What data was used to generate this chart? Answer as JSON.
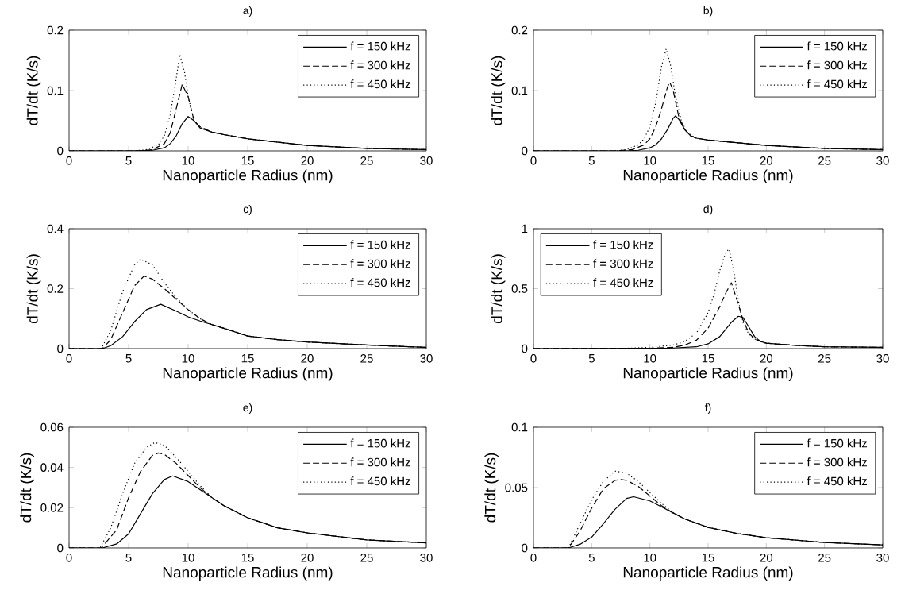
{
  "chart_data": [
    {
      "type": "line",
      "title": "a)",
      "xlabel": "Nanoparticle Radius (nm)",
      "ylabel": "dT/dt (K/s)",
      "xlim": [
        0,
        30
      ],
      "xticks": [
        0,
        5,
        10,
        15,
        20,
        25,
        30
      ],
      "ylim": [
        0,
        0.2
      ],
      "yticks": [
        0,
        0.1,
        0.2
      ],
      "legend": "top right",
      "series": [
        {
          "name": "f = 150 kHz",
          "color": "#000000",
          "line_style": "solid",
          "x": [
            0,
            5,
            7,
            8,
            8.5,
            9,
            9.5,
            10,
            10.5,
            11,
            12,
            13,
            15,
            20,
            25,
            30
          ],
          "values": [
            0,
            0,
            0.001,
            0.005,
            0.012,
            0.025,
            0.045,
            0.057,
            0.05,
            0.038,
            0.031,
            0.027,
            0.02,
            0.009,
            0.004,
            0.002
          ]
        },
        {
          "name": "f = 300 kHz",
          "color": "#000000",
          "line_style": "dashed",
          "x": [
            0,
            6,
            7,
            8,
            8.5,
            9,
            9.5,
            10,
            10.5,
            11,
            12,
            13,
            15,
            20,
            25,
            30
          ],
          "values": [
            0,
            0,
            0.002,
            0.012,
            0.03,
            0.07,
            0.11,
            0.09,
            0.05,
            0.04,
            0.031,
            0.027,
            0.02,
            0.009,
            0.004,
            0.002
          ]
        },
        {
          "name": "f = 450 kHz",
          "color": "#000000",
          "line_style": "dotted",
          "x": [
            0,
            5.5,
            6.5,
            7.5,
            8,
            8.5,
            9,
            9.3,
            9.7,
            10,
            10.5,
            11,
            12,
            13,
            15,
            20,
            25,
            30
          ],
          "values": [
            0,
            0,
            0.002,
            0.01,
            0.025,
            0.06,
            0.12,
            0.16,
            0.13,
            0.09,
            0.05,
            0.04,
            0.031,
            0.027,
            0.02,
            0.009,
            0.004,
            0.002
          ]
        }
      ]
    },
    {
      "type": "line",
      "title": "b)",
      "xlabel": "Nanoparticle Radius (nm)",
      "ylabel": "dT/dt (K/s)",
      "xlim": [
        0,
        30
      ],
      "xticks": [
        0,
        5,
        10,
        15,
        20,
        25,
        30
      ],
      "ylim": [
        0,
        0.2
      ],
      "yticks": [
        0,
        0.1,
        0.2
      ],
      "legend": "top right",
      "series": [
        {
          "name": "f = 150 kHz",
          "color": "#000000",
          "line_style": "solid",
          "x": [
            0,
            8,
            9,
            10,
            10.5,
            11,
            11.5,
            12,
            12.2,
            12.5,
            13,
            13.5,
            14,
            15,
            20,
            25,
            30
          ],
          "values": [
            0,
            0,
            0.001,
            0.005,
            0.01,
            0.02,
            0.035,
            0.054,
            0.058,
            0.052,
            0.035,
            0.025,
            0.021,
            0.018,
            0.009,
            0.004,
            0.002
          ]
        },
        {
          "name": "f = 300 kHz",
          "color": "#000000",
          "line_style": "dashed",
          "x": [
            0,
            7,
            8.5,
            9.5,
            10,
            10.5,
            11,
            11.5,
            11.7,
            12,
            12.5,
            13,
            13.5,
            14,
            15,
            20,
            25,
            30
          ],
          "values": [
            0,
            0,
            0.002,
            0.01,
            0.02,
            0.04,
            0.07,
            0.105,
            0.114,
            0.1,
            0.055,
            0.035,
            0.025,
            0.021,
            0.018,
            0.009,
            0.004,
            0.002
          ]
        },
        {
          "name": "f = 450 kHz",
          "color": "#000000",
          "line_style": "dotted",
          "x": [
            0,
            7,
            8,
            9,
            9.5,
            10,
            10.5,
            11,
            11.4,
            11.8,
            12.2,
            12.7,
            13.2,
            14,
            15,
            20,
            25,
            30
          ],
          "values": [
            0,
            0,
            0.002,
            0.01,
            0.02,
            0.04,
            0.08,
            0.14,
            0.169,
            0.14,
            0.09,
            0.05,
            0.03,
            0.021,
            0.018,
            0.009,
            0.004,
            0.002
          ]
        }
      ]
    },
    {
      "type": "line",
      "title": "c)",
      "xlabel": "Nanoparticle Radius (nm)",
      "ylabel": "dT/dt (K/s)",
      "xlim": [
        0,
        30
      ],
      "xticks": [
        0,
        5,
        10,
        15,
        20,
        25,
        30
      ],
      "ylim": [
        0,
        0.4
      ],
      "yticks": [
        0,
        0.2,
        0.4
      ],
      "legend": "top right",
      "series": [
        {
          "name": "f = 150 kHz",
          "color": "#000000",
          "line_style": "solid",
          "x": [
            0,
            2.8,
            3.5,
            4.5,
            5.5,
            6.5,
            7.7,
            9,
            10,
            11,
            12,
            13,
            15,
            17.5,
            20,
            25,
            30
          ],
          "values": [
            0,
            0,
            0.01,
            0.04,
            0.09,
            0.13,
            0.148,
            0.125,
            0.106,
            0.092,
            0.08,
            0.068,
            0.042,
            0.03,
            0.022,
            0.012,
            0.004
          ]
        },
        {
          "name": "f = 300 kHz",
          "color": "#000000",
          "line_style": "dashed",
          "x": [
            0,
            2.8,
            3.5,
            4.5,
            5.5,
            6.3,
            7,
            8,
            9,
            10,
            11,
            12,
            13,
            15,
            17.5,
            20,
            25,
            30
          ],
          "values": [
            0,
            0,
            0.03,
            0.12,
            0.21,
            0.242,
            0.232,
            0.2,
            0.165,
            0.13,
            0.1,
            0.08,
            0.068,
            0.042,
            0.03,
            0.022,
            0.012,
            0.004
          ]
        },
        {
          "name": "f = 450 kHz",
          "color": "#000000",
          "line_style": "dotted",
          "x": [
            0,
            2.7,
            3.5,
            4.5,
            5.5,
            6,
            7,
            8,
            9,
            10,
            11,
            12,
            13,
            15,
            17.5,
            20,
            25,
            30
          ],
          "values": [
            0,
            0,
            0.06,
            0.19,
            0.28,
            0.298,
            0.28,
            0.22,
            0.17,
            0.13,
            0.1,
            0.08,
            0.068,
            0.042,
            0.03,
            0.022,
            0.012,
            0.004
          ]
        }
      ]
    },
    {
      "type": "line",
      "title": "d)",
      "xlabel": "Nanoparticle Radius (nm)",
      "ylabel": "dT/dt (K/s)",
      "xlim": [
        0,
        30
      ],
      "xticks": [
        0,
        5,
        10,
        15,
        20,
        25,
        30
      ],
      "ylim": [
        0,
        1
      ],
      "yticks": [
        0,
        0.5,
        1
      ],
      "legend": "top left",
      "series": [
        {
          "name": "f = 150 kHz",
          "color": "#000000",
          "line_style": "solid",
          "x": [
            0,
            10,
            12,
            14,
            15,
            16,
            17,
            17.6,
            18,
            18.5,
            19,
            19.5,
            20,
            22,
            25,
            30
          ],
          "values": [
            0,
            0.002,
            0.005,
            0.015,
            0.04,
            0.1,
            0.22,
            0.27,
            0.26,
            0.18,
            0.1,
            0.06,
            0.045,
            0.03,
            0.015,
            0.01
          ]
        },
        {
          "name": "f = 300 kHz",
          "color": "#000000",
          "line_style": "dashed",
          "x": [
            0,
            10,
            12,
            13,
            14,
            15,
            16,
            16.5,
            17,
            17.5,
            18,
            18.5,
            19,
            19.5,
            20,
            22,
            25,
            30
          ],
          "values": [
            0,
            0.003,
            0.01,
            0.03,
            0.07,
            0.17,
            0.35,
            0.46,
            0.55,
            0.4,
            0.24,
            0.13,
            0.08,
            0.06,
            0.045,
            0.03,
            0.015,
            0.01
          ]
        },
        {
          "name": "f = 450 kHz",
          "color": "#000000",
          "line_style": "dotted",
          "x": [
            0,
            8,
            10,
            12,
            13,
            14,
            15,
            15.5,
            16,
            16.5,
            16.8,
            17.2,
            17.6,
            18,
            18.5,
            19,
            19.5,
            20,
            22,
            25,
            30
          ],
          "values": [
            0,
            0.003,
            0.01,
            0.03,
            0.06,
            0.13,
            0.3,
            0.45,
            0.65,
            0.8,
            0.83,
            0.65,
            0.4,
            0.22,
            0.12,
            0.08,
            0.06,
            0.045,
            0.03,
            0.015,
            0.01
          ]
        }
      ]
    },
    {
      "type": "line",
      "title": "e)",
      "xlabel": "Nanoparticle Radius (nm)",
      "ylabel": "dT/dt (K/s)",
      "xlim": [
        0,
        30
      ],
      "xticks": [
        0,
        5,
        10,
        15,
        20,
        25,
        30
      ],
      "ylim": [
        0,
        0.06
      ],
      "yticks": [
        0,
        0.02,
        0.04,
        0.06
      ],
      "legend": "top right",
      "series": [
        {
          "name": "f = 150 kHz",
          "color": "#000000",
          "line_style": "solid",
          "x": [
            0,
            2.8,
            4,
            5,
            6,
            7,
            8,
            8.7,
            10,
            11,
            12,
            13,
            15,
            17.5,
            20,
            25,
            30
          ],
          "values": [
            0,
            0,
            0.002,
            0.007,
            0.017,
            0.027,
            0.034,
            0.0358,
            0.033,
            0.029,
            0.025,
            0.021,
            0.015,
            0.01,
            0.0075,
            0.004,
            0.0025
          ]
        },
        {
          "name": "f = 300 kHz",
          "color": "#000000",
          "line_style": "dashed",
          "x": [
            0,
            2.7,
            4,
            5,
            6,
            7,
            7.5,
            8,
            9,
            10,
            11,
            12,
            13,
            15,
            17.5,
            20,
            25,
            30
          ],
          "values": [
            0,
            0,
            0.009,
            0.025,
            0.038,
            0.046,
            0.0472,
            0.0465,
            0.042,
            0.036,
            0.03,
            0.025,
            0.021,
            0.015,
            0.01,
            0.0075,
            0.004,
            0.0025
          ]
        },
        {
          "name": "f = 450 kHz",
          "color": "#000000",
          "line_style": "dotted",
          "x": [
            0,
            2.6,
            3.5,
            4.5,
            5.5,
            6.5,
            7.2,
            8,
            9,
            10,
            11,
            12,
            13,
            15,
            17.5,
            20,
            25,
            30
          ],
          "values": [
            0,
            0,
            0.01,
            0.027,
            0.042,
            0.05,
            0.0524,
            0.051,
            0.045,
            0.038,
            0.031,
            0.025,
            0.021,
            0.015,
            0.01,
            0.0075,
            0.004,
            0.0025
          ]
        }
      ]
    },
    {
      "type": "line",
      "title": "f)",
      "xlabel": "Nanoparticle Radius (nm)",
      "ylabel": "dT/dt (K/s)",
      "xlim": [
        0,
        30
      ],
      "xticks": [
        0,
        5,
        10,
        15,
        20,
        25,
        30
      ],
      "ylim": [
        0,
        0.1
      ],
      "yticks": [
        0,
        0.05,
        0.1
      ],
      "legend": "top right",
      "series": [
        {
          "name": "f = 150 kHz",
          "color": "#000000",
          "line_style": "solid",
          "x": [
            0,
            3,
            4,
            5,
            6,
            7,
            8,
            8.6,
            10,
            11,
            12,
            13,
            15,
            17.5,
            20,
            25,
            30
          ],
          "values": [
            0,
            0,
            0.003,
            0.009,
            0.02,
            0.032,
            0.041,
            0.0424,
            0.039,
            0.034,
            0.029,
            0.024,
            0.017,
            0.012,
            0.0085,
            0.0045,
            0.0025
          ]
        },
        {
          "name": "f = 300 kHz",
          "color": "#000000",
          "line_style": "dashed",
          "x": [
            0,
            3,
            4,
            5,
            6,
            7,
            7.5,
            8,
            9,
            10,
            11,
            12,
            13,
            15,
            17.5,
            20,
            25,
            30
          ],
          "values": [
            0,
            0,
            0.014,
            0.033,
            0.049,
            0.056,
            0.0567,
            0.056,
            0.051,
            0.043,
            0.035,
            0.029,
            0.024,
            0.017,
            0.012,
            0.0085,
            0.0045,
            0.0025
          ]
        },
        {
          "name": "f = 450 kHz",
          "color": "#000000",
          "line_style": "dotted",
          "x": [
            0,
            3,
            4,
            5,
            6,
            7,
            8,
            9,
            10,
            11,
            12,
            13,
            15,
            17.5,
            20,
            25,
            30
          ],
          "values": [
            0,
            0,
            0.02,
            0.04,
            0.055,
            0.0637,
            0.062,
            0.055,
            0.046,
            0.037,
            0.029,
            0.024,
            0.017,
            0.012,
            0.0085,
            0.0045,
            0.0025
          ]
        }
      ]
    }
  ]
}
